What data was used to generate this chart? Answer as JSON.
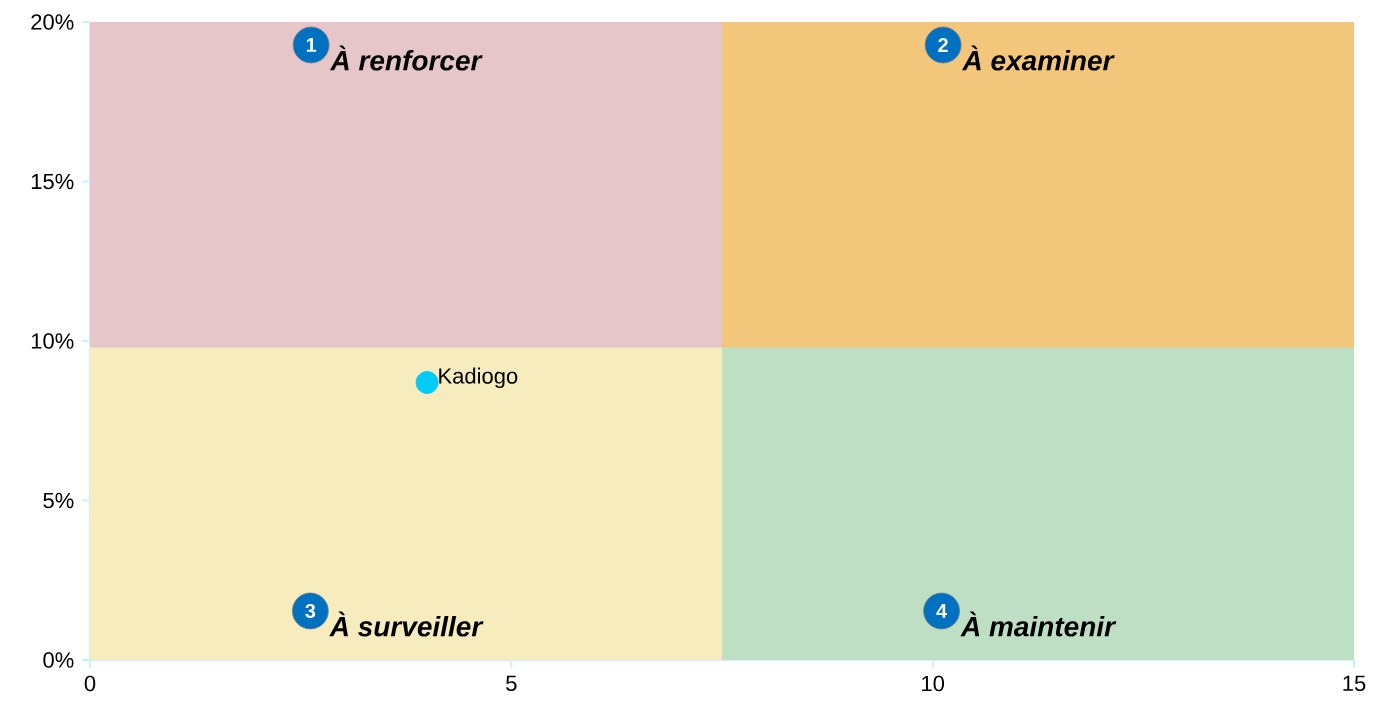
{
  "chart_data": {
    "type": "scatter",
    "series": [
      {
        "type": "area",
        "color": "#e6c6c9",
        "x": [
          0,
          7.5
        ],
        "values": [
          20,
          20
        ]
      },
      {
        "type": "area",
        "color": "#f3c77b",
        "x": [
          7.5,
          15
        ],
        "values": [
          20,
          20
        ]
      },
      {
        "type": "area",
        "color": "#f7ecbd",
        "x": [
          0,
          7.5
        ],
        "values": [
          9.8,
          9.8
        ]
      },
      {
        "type": "area",
        "color": "#bfdfc5",
        "x": [
          7.5,
          15
        ],
        "values": [
          9.8,
          9.8
        ]
      },
      {
        "name": "Kadiogo",
        "color": "#00ccf5",
        "x": [
          4
        ],
        "values": [
          8.7
        ]
      }
    ],
    "xlim": [
      0,
      15
    ],
    "xticks": [
      0,
      5,
      10,
      15
    ],
    "ylim": [
      0,
      20
    ],
    "yticks": [
      {
        "value": 0,
        "label": "0%"
      },
      {
        "value": 5,
        "label": "5%"
      },
      {
        "value": 10,
        "label": "10%"
      },
      {
        "value": 15,
        "label": "15%"
      },
      {
        "value": 20,
        "label": "20%"
      }
    ],
    "annotations": [
      "1",
      "À renforcer",
      "2",
      "À examiner",
      "3",
      "À surveiller",
      "4",
      "À maintenir"
    ]
  }
}
